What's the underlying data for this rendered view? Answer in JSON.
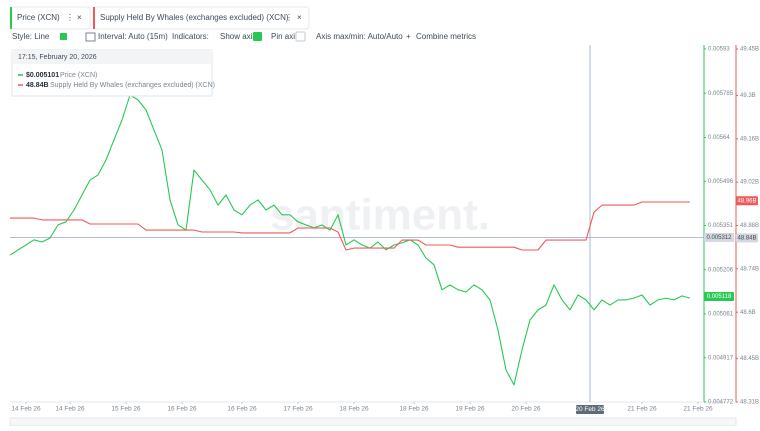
{
  "tabs": [
    {
      "label": "Price (XCN)",
      "color": "#26c953"
    },
    {
      "label": "Supply Held By Whales (exchanges excluded) (XCN)",
      "color": "#ef5a5a"
    }
  ],
  "toolbar": {
    "style": "Style: Line",
    "interval": "Interval: Auto (15m)",
    "indicators": "Indicators:",
    "show_axis": "Show axis",
    "pin_axis": "Pin axis",
    "axis_range": "Axis max/min: Auto/Auto",
    "combine": "Combine metrics"
  },
  "tooltip": {
    "time": "17:15, February 20, 2026",
    "rows": [
      {
        "value": "$0.005101",
        "label": "Price (XCN)"
      },
      {
        "value": "48.84B",
        "label": "Supply Held By Whales (exchanges excluded) (XCN)"
      }
    ]
  },
  "chart_data": {
    "type": "line",
    "watermark": "santiment.",
    "xlim": [
      0,
      86.5
    ],
    "xticks": [
      {
        "value": 2,
        "label": "14 Feb 26"
      },
      {
        "value": 7.5,
        "label": "14 Feb 26"
      },
      {
        "value": 14.5,
        "label": "15 Feb 26"
      },
      {
        "value": 21.5,
        "label": "16 Feb 26"
      },
      {
        "value": 29,
        "label": "16 Feb 26"
      },
      {
        "value": 36,
        "label": "17 Feb 26"
      },
      {
        "value": 43,
        "label": "18 Feb 26"
      },
      {
        "value": 50.5,
        "label": "18 Feb 26"
      },
      {
        "value": 57.5,
        "label": "19 Feb 26"
      },
      {
        "value": 64.5,
        "label": "20 Feb 26"
      },
      {
        "value": 79,
        "label": "21 Feb 26"
      },
      {
        "value": 86,
        "label": "21 Feb 26"
      }
    ],
    "ylim": [
      0.004772,
      0.00593
    ],
    "yticks": [
      0.00593,
      0.005785,
      0.00564,
      0.005496,
      0.005351,
      0.005206,
      0.005061,
      0.004917,
      0.004772
    ],
    "y2lim": [
      48.31,
      49.45
    ],
    "y2ticks": [
      {
        "value": 49.45,
        "label": "49.45B"
      },
      {
        "value": 49.3,
        "label": "49.3B"
      },
      {
        "value": 49.16,
        "label": "49.16B"
      },
      {
        "value": 49.02,
        "label": "49.02B"
      },
      {
        "value": 48.88,
        "label": "48.88B"
      },
      {
        "value": 48.74,
        "label": "48.74B"
      },
      {
        "value": 48.6,
        "label": "48.6B"
      },
      {
        "value": 48.45,
        "label": "48.45B"
      },
      {
        "value": 48.31,
        "label": "48.31B"
      }
    ],
    "series": [
      {
        "name": "Price (XCN)",
        "color": "#26c953",
        "values": [
          0.005254,
          0.005271,
          0.005287,
          0.005304,
          0.005297,
          0.00531,
          0.005353,
          0.005363,
          0.005402,
          0.005451,
          0.0055,
          0.005517,
          0.005566,
          0.005632,
          0.005697,
          0.005779,
          0.005763,
          0.00573,
          0.005664,
          0.005599,
          0.005435,
          0.005353,
          0.005336,
          0.005533,
          0.0055,
          0.005468,
          0.005418,
          0.005451,
          0.005402,
          0.005386,
          0.005418,
          0.005435,
          0.005402,
          0.005418,
          0.005386,
          0.005386,
          0.005363,
          0.005353,
          0.005343,
          0.005353,
          0.005336,
          0.005386,
          0.005287,
          0.005304,
          0.005287,
          0.005277,
          0.005297,
          0.005271,
          0.005287,
          0.005294,
          0.005304,
          0.005287,
          0.005244,
          0.005222,
          0.00514,
          0.005156,
          0.00514,
          0.005133,
          0.005156,
          0.00514,
          0.005107,
          0.005008,
          0.004877,
          0.004828,
          0.004943,
          0.005041,
          0.005074,
          0.00509,
          0.005156,
          0.005107,
          0.005074,
          0.005123,
          0.005107,
          0.005074,
          0.005107,
          0.00509,
          0.005107,
          0.005107,
          0.005113,
          0.005123,
          0.00509,
          0.005107,
          0.005113,
          0.005107,
          0.00512,
          0.005113
        ]
      },
      {
        "name": "Supply Held By Whales (exchanges excluded) (XCN)",
        "color": "#ef5a5a",
        "axis": "y2",
        "values": [
          48.904,
          48.904,
          48.904,
          48.904,
          48.898,
          48.898,
          48.898,
          48.898,
          48.898,
          48.898,
          48.885,
          48.885,
          48.885,
          48.885,
          48.885,
          48.885,
          48.885,
          48.865,
          48.865,
          48.865,
          48.865,
          48.865,
          48.865,
          48.865,
          48.859,
          48.859,
          48.859,
          48.859,
          48.859,
          48.856,
          48.856,
          48.856,
          48.856,
          48.856,
          48.856,
          48.856,
          48.872,
          48.872,
          48.872,
          48.872,
          48.872,
          48.859,
          48.801,
          48.807,
          48.807,
          48.807,
          48.807,
          48.807,
          48.807,
          48.833,
          48.833,
          48.833,
          48.817,
          48.817,
          48.817,
          48.817,
          48.81,
          48.81,
          48.81,
          48.81,
          48.81,
          48.81,
          48.81,
          48.81,
          48.801,
          48.801,
          48.801,
          48.833,
          48.833,
          48.833,
          48.833,
          48.833,
          48.833,
          48.923,
          48.946,
          48.946,
          48.946,
          48.946,
          48.946,
          48.956,
          48.956,
          48.956,
          48.956,
          48.956,
          48.956,
          48.956
        ]
      }
    ],
    "last_labels": {
      "price": 0.005118,
      "whales": {
        "value": 48.96,
        "label": "48.96B"
      }
    },
    "crosshair": {
      "x": {
        "value": 72.5,
        "label": "20 Feb 26"
      },
      "y": 0.005312,
      "y2": {
        "value": 48.84,
        "label": "48.84B"
      }
    }
  }
}
